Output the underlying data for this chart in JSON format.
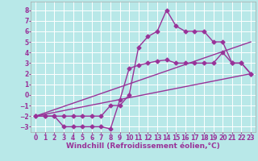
{
  "xlabel": "Windchill (Refroidissement éolien,°C)",
  "bg_color": "#b8e8e8",
  "line_color": "#993399",
  "grid_color": "#ffffff",
  "xlim": [
    -0.5,
    23.5
  ],
  "ylim": [
    -3.5,
    8.8
  ],
  "yticks": [
    -3,
    -2,
    -1,
    0,
    1,
    2,
    3,
    4,
    5,
    6,
    7,
    8
  ],
  "xticks": [
    0,
    1,
    2,
    3,
    4,
    5,
    6,
    7,
    8,
    9,
    10,
    11,
    12,
    13,
    14,
    15,
    16,
    17,
    18,
    19,
    20,
    21,
    22,
    23
  ],
  "line1_x": [
    0,
    1,
    2,
    3,
    4,
    5,
    6,
    7,
    8,
    9,
    10,
    11,
    12,
    13,
    14,
    15,
    16,
    17,
    18,
    19,
    20,
    21,
    22,
    23
  ],
  "line1_y": [
    -2,
    -2,
    -2,
    -3,
    -3,
    -3,
    -3,
    -3,
    -3.2,
    -0.5,
    2.5,
    2.8,
    3.0,
    3.2,
    3.3,
    3.0,
    3.0,
    3.0,
    3.0,
    3.0,
    4.0,
    3.0,
    3.0,
    2.0
  ],
  "line2_x": [
    0,
    1,
    2,
    3,
    4,
    5,
    6,
    7,
    8,
    9,
    10,
    11,
    12,
    13,
    14,
    15,
    16,
    17,
    18,
    19,
    20,
    21,
    22,
    23
  ],
  "line2_y": [
    -2,
    -2,
    -2,
    -2,
    -2,
    -2,
    -2,
    -2,
    -1,
    -1,
    0,
    4.5,
    5.5,
    6.0,
    8.0,
    6.5,
    6.0,
    6.0,
    6.0,
    5.0,
    5.0,
    3.0,
    3.0,
    2.0
  ],
  "line3_x": [
    0,
    23
  ],
  "line3_y": [
    -2.0,
    2.0
  ],
  "line4_x": [
    0,
    23
  ],
  "line4_y": [
    -2.0,
    5.0
  ],
  "marker": "D",
  "markersize": 2.5,
  "linewidth": 1.0,
  "xlabel_fontsize": 6.5,
  "tick_fontsize": 5.5
}
